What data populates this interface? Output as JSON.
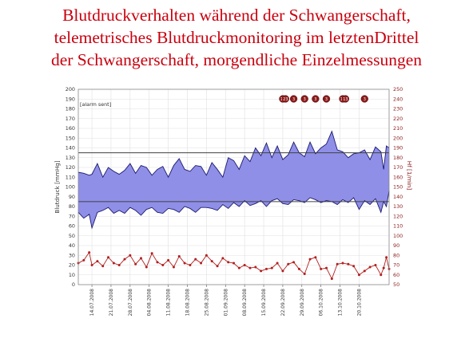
{
  "title_lines": [
    "Blutdruckverhalten während der Schwangerschaft,",
    "telemetrisches Blutdruckmonitoring im letztenDrittel",
    "der Schwangerschaft, morgendliche Einzelmessungen"
  ],
  "colors": {
    "title": "#c8000e",
    "band_fill": "#8f8fe8",
    "band_line": "#1a1a6e",
    "heart_rate": "#b21e1e",
    "threshold": "#404040",
    "grid": "#e0e0e0",
    "marker": "#8b1a1a"
  },
  "chart_data": {
    "type": "area",
    "alarm_text": "[alarm sent]",
    "left_axis": {
      "label": "Blutdruck [mmHg]",
      "min": 0,
      "max": 200,
      "ticks": [
        0,
        10,
        20,
        30,
        40,
        50,
        60,
        70,
        80,
        90,
        100,
        110,
        120,
        130,
        140,
        150,
        160,
        170,
        180,
        190,
        200
      ]
    },
    "right_axis": {
      "label": "Hf [1/min]",
      "min": 50,
      "max": 250,
      "ticks": [
        50,
        60,
        70,
        80,
        90,
        100,
        110,
        120,
        130,
        140,
        150,
        160,
        170,
        180,
        190,
        200,
        210,
        220,
        230,
        240,
        250
      ]
    },
    "x_axis": {
      "start": "09.07.2008",
      "end": "31.10.2008",
      "tick_labels": [
        "14.07.2008",
        "21.07.2008",
        "28.07.2008",
        "04.08.2008",
        "11.08.2008",
        "18.08.2008",
        "25.08.2008",
        "01.09.2008",
        "08.09.2008",
        "15.09.2008",
        "22.09.2008",
        "29.09.2008",
        "06.10.2008",
        "13.10.2008",
        "20.10.2008"
      ]
    },
    "threshold_lines": [
      {
        "axis": "left",
        "value": 135
      },
      {
        "axis": "left",
        "value": 85
      }
    ],
    "series": [
      {
        "axis": "left",
        "dates": [
          "09.07.2008",
          "11.07.2008",
          "13.07.2008",
          "14.07.2008",
          "16.07.2008",
          "18.07.2008",
          "20.07.2008",
          "22.07.2008",
          "24.07.2008",
          "26.07.2008",
          "28.07.2008",
          "30.07.2008",
          "01.08.2008",
          "03.08.2008",
          "05.08.2008",
          "07.08.2008",
          "09.08.2008",
          "11.08.2008",
          "13.08.2008",
          "15.08.2008",
          "17.08.2008",
          "19.08.2008",
          "21.08.2008",
          "23.08.2008",
          "25.08.2008",
          "27.08.2008",
          "29.08.2008",
          "31.08.2008",
          "02.09.2008",
          "04.09.2008",
          "06.09.2008",
          "08.09.2008",
          "10.09.2008",
          "12.09.2008",
          "14.09.2008",
          "16.09.2008",
          "18.09.2008",
          "20.09.2008",
          "22.09.2008",
          "24.09.2008",
          "26.09.2008",
          "28.09.2008",
          "30.09.2008",
          "02.10.2008",
          "04.10.2008",
          "06.10.2008",
          "08.10.2008",
          "10.10.2008",
          "12.10.2008",
          "14.10.2008",
          "16.10.2008",
          "18.10.2008",
          "20.10.2008",
          "22.10.2008",
          "24.10.2008",
          "26.10.2008",
          "28.10.2008",
          "29.10.2008",
          "30.10.2008",
          "31.10.2008"
        ],
        "values": [
          115,
          114,
          112,
          113,
          124,
          110,
          120,
          116,
          113,
          117,
          124,
          114,
          122,
          120,
          112,
          118,
          121,
          110,
          122,
          129,
          118,
          116,
          122,
          121,
          112,
          125,
          118,
          110,
          130,
          127,
          118,
          132,
          126,
          140,
          132,
          145,
          130,
          142,
          128,
          133,
          146,
          135,
          131,
          146,
          134,
          140,
          144,
          157,
          138,
          136,
          130,
          134,
          135,
          138,
          128,
          141,
          136,
          118,
          142,
          140
        ]
      },
      {
        "axis": "left",
        "dates": [
          "09.07.2008",
          "11.07.2008",
          "13.07.2008",
          "14.07.2008",
          "16.07.2008",
          "18.07.2008",
          "20.07.2008",
          "22.07.2008",
          "24.07.2008",
          "26.07.2008",
          "28.07.2008",
          "30.07.2008",
          "01.08.2008",
          "03.08.2008",
          "05.08.2008",
          "07.08.2008",
          "09.08.2008",
          "11.08.2008",
          "13.08.2008",
          "15.08.2008",
          "17.08.2008",
          "19.08.2008",
          "21.08.2008",
          "23.08.2008",
          "25.08.2008",
          "27.08.2008",
          "29.08.2008",
          "31.08.2008",
          "02.09.2008",
          "04.09.2008",
          "06.09.2008",
          "08.09.2008",
          "10.09.2008",
          "12.09.2008",
          "14.09.2008",
          "16.09.2008",
          "18.09.2008",
          "20.09.2008",
          "22.09.2008",
          "24.09.2008",
          "26.09.2008",
          "28.09.2008",
          "30.09.2008",
          "02.10.2008",
          "04.10.2008",
          "06.10.2008",
          "08.10.2008",
          "10.10.2008",
          "12.10.2008",
          "14.10.2008",
          "16.10.2008",
          "18.10.2008",
          "20.10.2008",
          "22.10.2008",
          "24.10.2008",
          "26.10.2008",
          "28.10.2008",
          "29.10.2008",
          "30.10.2008",
          "31.10.2008"
        ],
        "values": [
          74,
          68,
          72,
          58,
          74,
          76,
          79,
          73,
          76,
          73,
          79,
          76,
          71,
          77,
          79,
          74,
          73,
          78,
          77,
          74,
          80,
          78,
          74,
          79,
          79,
          78,
          76,
          82,
          78,
          84,
          80,
          86,
          81,
          83,
          86,
          80,
          86,
          88,
          83,
          82,
          87,
          86,
          84,
          89,
          87,
          84,
          86,
          85,
          82,
          87,
          84,
          89,
          77,
          86,
          82,
          88,
          74,
          85,
          80,
          96
        ]
      },
      {
        "axis": "right",
        "dates": [
          "09.07.2008",
          "11.07.2008",
          "13.07.2008",
          "14.07.2008",
          "16.07.2008",
          "18.07.2008",
          "20.07.2008",
          "22.07.2008",
          "24.07.2008",
          "26.07.2008",
          "28.07.2008",
          "30.07.2008",
          "01.08.2008",
          "03.08.2008",
          "05.08.2008",
          "07.08.2008",
          "09.08.2008",
          "11.08.2008",
          "13.08.2008",
          "15.08.2008",
          "17.08.2008",
          "19.08.2008",
          "21.08.2008",
          "23.08.2008",
          "25.08.2008",
          "27.08.2008",
          "29.08.2008",
          "31.08.2008",
          "02.09.2008",
          "04.09.2008",
          "06.09.2008",
          "08.09.2008",
          "10.09.2008",
          "12.09.2008",
          "14.09.2008",
          "16.09.2008",
          "18.09.2008",
          "20.09.2008",
          "22.09.2008",
          "24.09.2008",
          "26.09.2008",
          "28.09.2008",
          "30.09.2008",
          "02.10.2008",
          "04.10.2008",
          "06.10.2008",
          "08.10.2008",
          "10.10.2008",
          "12.10.2008",
          "14.10.2008",
          "16.10.2008",
          "18.10.2008",
          "20.10.2008",
          "22.10.2008",
          "24.10.2008",
          "26.10.2008",
          "28.10.2008",
          "29.10.2008",
          "30.10.2008",
          "31.10.2008"
        ],
        "values": [
          72,
          75,
          83,
          70,
          74,
          69,
          78,
          72,
          70,
          76,
          80,
          71,
          77,
          68,
          82,
          73,
          70,
          75,
          68,
          79,
          72,
          70,
          76,
          72,
          80,
          74,
          69,
          77,
          73,
          72,
          67,
          70,
          67,
          68,
          64,
          66,
          67,
          72,
          64,
          71,
          73,
          66,
          61,
          76,
          78,
          66,
          67,
          56,
          71,
          72,
          71,
          69,
          60,
          64,
          68,
          70,
          60,
          67,
          78,
          66
        ]
      }
    ],
    "alarm_marker_dates": [
      "22.09.2008",
      "23.09.2008",
      "26.09.2008",
      "30.09.2008",
      "04.10.2008",
      "08.10.2008",
      "14.10.2008",
      "15.10.2008",
      "22.10.2008"
    ],
    "alarm_marker_labels": [
      "15",
      "23",
      "3",
      "3",
      "3",
      "3",
      "15",
      "13",
      "3"
    ]
  }
}
